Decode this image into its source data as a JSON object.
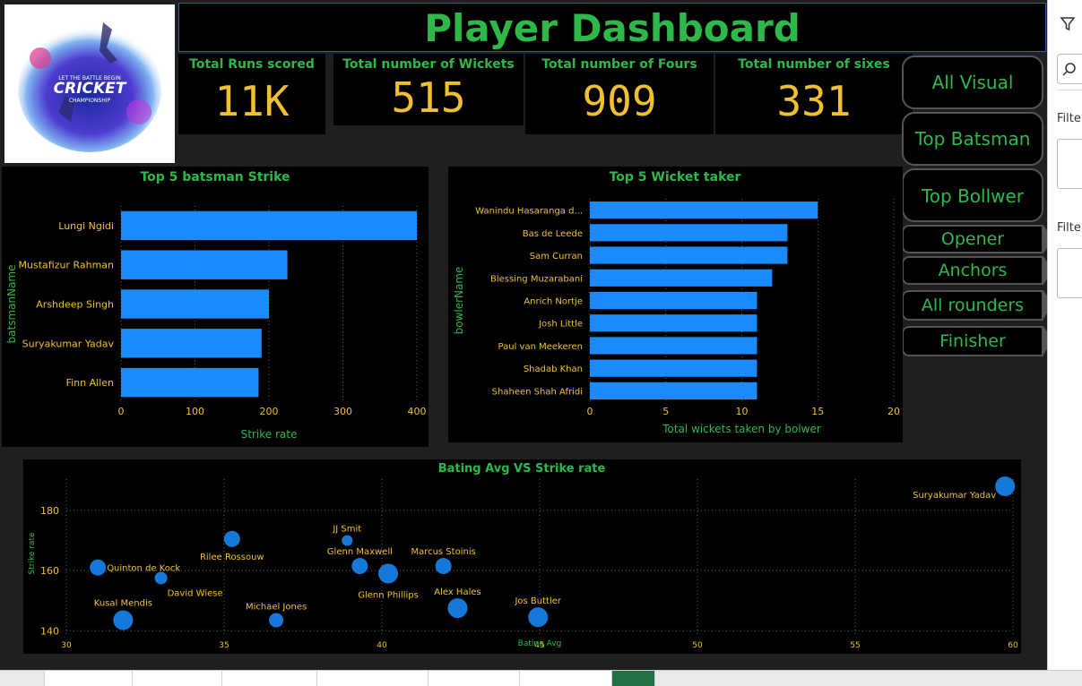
{
  "header": {
    "title": "Player Dashboard"
  },
  "logo": {
    "line1": "LET THE BATTLE BEGIN",
    "line2": "CRICKET",
    "line3": "CHAMPIONSHIP"
  },
  "kpis": [
    {
      "label": "Total Runs scored",
      "value": "11K"
    },
    {
      "label": "Total number of Wickets",
      "value": "515"
    },
    {
      "label": "Total number of Fours",
      "value": "909"
    },
    {
      "label": "Total number of sixes",
      "value": "331"
    }
  ],
  "nav": {
    "all_visual": "All Visual",
    "top_batsman": "Top Batsman",
    "top_bowler": "Top Bollwer",
    "opener": "Opener",
    "anchors": "Anchors",
    "all_rounders": "All rounders",
    "finisher": "Finisher"
  },
  "filters": {
    "label1": "Filter",
    "label2": "Filter"
  },
  "colors": {
    "bar": "#1a8cff",
    "green": "#2fb84a",
    "gold": "#f0c030",
    "bubble": "#1479d9"
  },
  "chart_data": [
    {
      "type": "bar",
      "orientation": "horizontal",
      "title": "Top 5 batsman Strike",
      "xlabel": "Strike rate",
      "ylabel": "batsmanName",
      "categories": [
        "Lungi Ngidi",
        "Mustafizur Rahman",
        "Arshdeep Singh",
        "Suryakumar Yadav",
        "Finn Allen"
      ],
      "values": [
        400,
        225,
        200,
        190,
        186
      ],
      "xlim": [
        0,
        400
      ],
      "xticks": [
        "0",
        "100",
        "200",
        "300",
        "400"
      ],
      "grid": true
    },
    {
      "type": "bar",
      "orientation": "horizontal",
      "title": "Top 5 Wicket taker",
      "xlabel": "Total wickets taken by bolwer",
      "ylabel": "bowlerName",
      "categories": [
        "Wanindu Hasaranga d...",
        "Bas de Leede",
        "Sam Curran",
        "Blessing Muzarabani",
        "Anrich Nortje",
        "Josh Little",
        "Paul van Meekeren",
        "Shadab Khan",
        "Shaheen Shah Afridi"
      ],
      "values": [
        15,
        13,
        13,
        12,
        11,
        11,
        11,
        11,
        11
      ],
      "xlim": [
        0,
        20
      ],
      "xticks": [
        "0",
        "5",
        "10",
        "15",
        "20"
      ],
      "grid": true
    },
    {
      "type": "scatter",
      "title": "Bating Avg VS Strike rate",
      "xlabel": "Bating Avg",
      "ylabel": "Strike rate",
      "xlim": [
        30,
        60
      ],
      "ylim": [
        138,
        188
      ],
      "xticks": [
        "30",
        "35",
        "40",
        "45",
        "50",
        "55",
        "60"
      ],
      "yticks": [
        "140",
        "160",
        "180"
      ],
      "grid": true,
      "points": [
        {
          "label": "Suryakumar Yadav",
          "x": 59.75,
          "y": 188,
          "r": 11
        },
        {
          "label": "JJ Smit",
          "x": 38.9,
          "y": 170,
          "r": 6
        },
        {
          "label": "Rilee Rossouw",
          "x": 35.25,
          "y": 170.5,
          "r": 9
        },
        {
          "label": "Quinton de Kock",
          "x": 31,
          "y": 161,
          "r": 9
        },
        {
          "label": "Glenn Maxwell",
          "x": 39.3,
          "y": 161.5,
          "r": 9
        },
        {
          "label": "Marcus Stoinis",
          "x": 41.95,
          "y": 161.5,
          "r": 9
        },
        {
          "label": "Glenn Phillips",
          "x": 40.2,
          "y": 159,
          "r": 11
        },
        {
          "label": "David Wiese",
          "x": 33,
          "y": 157.5,
          "r": 7
        },
        {
          "label": "Alex Hales",
          "x": 42.4,
          "y": 147.5,
          "r": 11
        },
        {
          "label": "Jos Buttler",
          "x": 44.95,
          "y": 144.5,
          "r": 11
        },
        {
          "label": "Kusal Mendis",
          "x": 31.8,
          "y": 143.5,
          "r": 11
        },
        {
          "label": "Michael Jones",
          "x": 36.65,
          "y": 143.5,
          "r": 8
        }
      ]
    }
  ]
}
